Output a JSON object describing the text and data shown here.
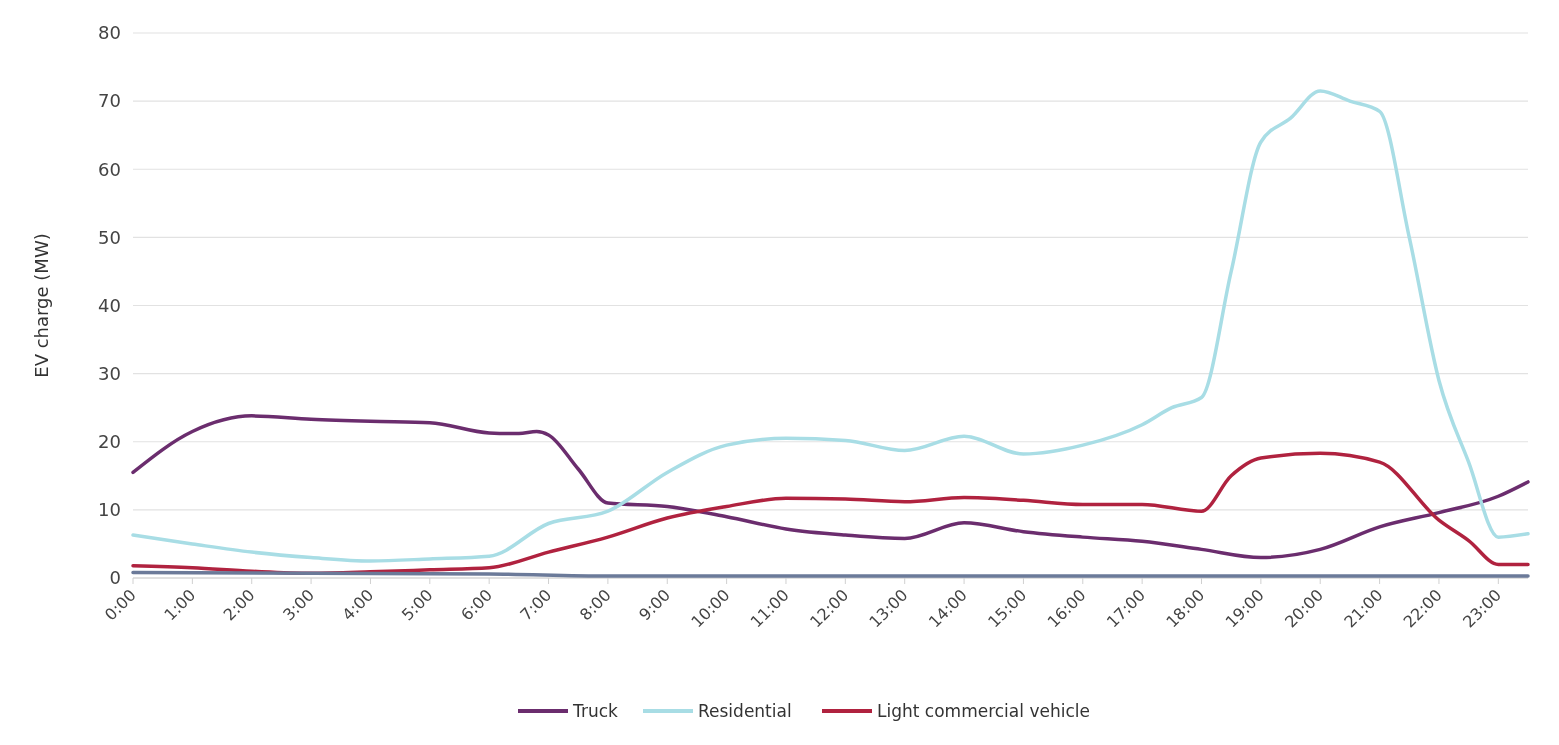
{
  "chart_data": {
    "type": "line",
    "ylabel": "EV charge (MW)",
    "xlim": [
      0,
      23.5
    ],
    "ylim": [
      0,
      80
    ],
    "yticks": [
      0,
      10,
      20,
      30,
      40,
      50,
      60,
      70,
      80
    ],
    "xticks": [
      {
        "value": 0,
        "label": "0:00"
      },
      {
        "value": 1,
        "label": "1:00"
      },
      {
        "value": 2,
        "label": "2:00"
      },
      {
        "value": 3,
        "label": "3:00"
      },
      {
        "value": 4,
        "label": "4:00"
      },
      {
        "value": 5,
        "label": "5:00"
      },
      {
        "value": 6,
        "label": "6:00"
      },
      {
        "value": 7,
        "label": "7:00"
      },
      {
        "value": 8,
        "label": "8:00"
      },
      {
        "value": 9,
        "label": "9:00"
      },
      {
        "value": 10,
        "label": "10:00"
      },
      {
        "value": 11,
        "label": "11:00"
      },
      {
        "value": 12,
        "label": "12:00"
      },
      {
        "value": 13,
        "label": "13:00"
      },
      {
        "value": 14,
        "label": "14:00"
      },
      {
        "value": 15,
        "label": "15:00"
      },
      {
        "value": 16,
        "label": "16:00"
      },
      {
        "value": 17,
        "label": "17:00"
      },
      {
        "value": 18,
        "label": "18:00"
      },
      {
        "value": 19,
        "label": "19:00"
      },
      {
        "value": 20,
        "label": "20:00"
      },
      {
        "value": 21,
        "label": "21:00"
      },
      {
        "value": 22,
        "label": "22:00"
      },
      {
        "value": 23,
        "label": "23:00"
      }
    ],
    "grid": "y",
    "legend": "bottom",
    "line_style": "solid",
    "marker": "none",
    "series": [
      {
        "name": "Truck",
        "color": "#6b2d6e",
        "x": [
          0,
          1,
          2,
          3,
          4,
          5,
          6,
          6.5,
          6.8,
          7,
          7.5,
          8,
          9,
          10,
          11,
          12,
          13,
          14,
          15,
          16,
          17,
          18,
          19,
          20,
          21,
          22,
          23,
          23.5
        ],
        "values": [
          15.5,
          21.5,
          23.8,
          23.3,
          23,
          22.8,
          21.3,
          21.2,
          21.5,
          21,
          16,
          11,
          10.5,
          9,
          7.2,
          6.3,
          5.8,
          8.1,
          6.8,
          6,
          5.4,
          4.2,
          3,
          4.2,
          7.5,
          9.6,
          12,
          14.1
        ]
      },
      {
        "name": "Residential",
        "color": "#a8dde5",
        "x": [
          0,
          1,
          2,
          3,
          4,
          5,
          6,
          7,
          8,
          9,
          10,
          11,
          12,
          13,
          14,
          15,
          16,
          17,
          17.5,
          18,
          18.5,
          19,
          19.5,
          20,
          20.5,
          21,
          21.5,
          22,
          22.5,
          23,
          23.5
        ],
        "values": [
          6.3,
          5,
          3.8,
          3,
          2.5,
          2.8,
          3.2,
          8,
          9.8,
          15.5,
          19.5,
          20.5,
          20.2,
          18.7,
          20.8,
          18.2,
          19.5,
          22.5,
          25,
          26.5,
          45,
          64,
          67.5,
          71.5,
          70,
          68.5,
          50,
          29,
          17,
          6,
          6.5
        ]
      },
      {
        "name": "Light commercial vehicle",
        "color": "#b0223f",
        "x": [
          0,
          1,
          2,
          3,
          4,
          5,
          6,
          7,
          8,
          9,
          10,
          11,
          12,
          13,
          14,
          15,
          16,
          17,
          18,
          18.5,
          19,
          20,
          21,
          22,
          22.5,
          23,
          23.5
        ],
        "values": [
          1.8,
          1.5,
          1,
          0.7,
          0.9,
          1.2,
          1.5,
          3.8,
          6,
          8.8,
          10.5,
          11.7,
          11.6,
          11.2,
          11.8,
          11.4,
          10.8,
          10.8,
          9.8,
          15,
          17.6,
          18.3,
          17,
          8.5,
          5.5,
          2,
          2
        ]
      },
      {
        "color": "#6b7a99",
        "x": [
          0,
          6,
          8,
          23.5
        ],
        "values": [
          0.8,
          0.6,
          0.3,
          0.3
        ]
      }
    ]
  }
}
